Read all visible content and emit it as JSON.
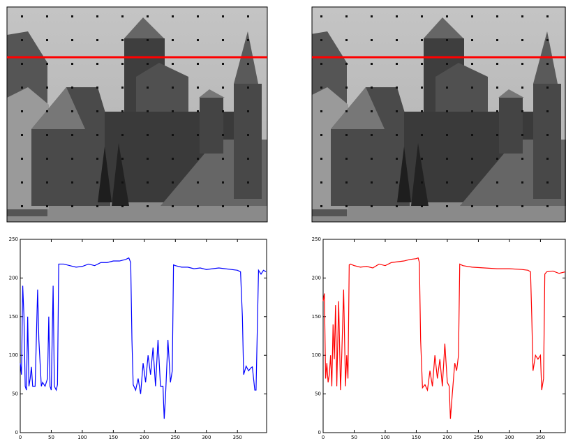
{
  "chart_data": [
    {
      "type": "line",
      "x": [
        0,
        2,
        4,
        6,
        8,
        10,
        12,
        14,
        16,
        18,
        20,
        24,
        28,
        30,
        34,
        36,
        40,
        44,
        46,
        48,
        50,
        53,
        55,
        58,
        60,
        62,
        70,
        80,
        90,
        100,
        110,
        120,
        130,
        140,
        150,
        160,
        170,
        175,
        178,
        180,
        182,
        186,
        190,
        194,
        198,
        202,
        206,
        210,
        214,
        218,
        222,
        226,
        230,
        232,
        234,
        238,
        242,
        245,
        247,
        250,
        260,
        270,
        280,
        290,
        300,
        310,
        320,
        330,
        340,
        350,
        355,
        358,
        360,
        364,
        368,
        372,
        374,
        378,
        380,
        384,
        388,
        392,
        396
      ],
      "series": [
        {
          "color": "#0000ff",
          "values": [
            90,
            75,
            190,
            150,
            60,
            55,
            150,
            60,
            70,
            85,
            60,
            60,
            185,
            120,
            60,
            65,
            60,
            70,
            150,
            60,
            55,
            190,
            60,
            55,
            62,
            218,
            218,
            216,
            214,
            215,
            218,
            216,
            220,
            220,
            222,
            222,
            224,
            226,
            220,
            120,
            62,
            55,
            70,
            50,
            90,
            65,
            100,
            75,
            110,
            60,
            120,
            60,
            60,
            18,
            45,
            120,
            65,
            80,
            217,
            216,
            214,
            214,
            212,
            213,
            211,
            212,
            213,
            212,
            211,
            210,
            208,
            150,
            75,
            86,
            80,
            84,
            85,
            55,
            55,
            210,
            205,
            210,
            208
          ]
        }
      ],
      "xlim": [
        0,
        397
      ],
      "ylim": [
        0,
        250
      ],
      "xticks": [
        0,
        50,
        100,
        150,
        200,
        250,
        300,
        350
      ],
      "yticks": [
        0,
        50,
        100,
        150,
        200,
        250
      ]
    },
    {
      "type": "line",
      "x": [
        0,
        2,
        4,
        6,
        8,
        10,
        12,
        14,
        16,
        18,
        20,
        22,
        25,
        28,
        30,
        33,
        36,
        38,
        40,
        42,
        44,
        50,
        60,
        70,
        80,
        90,
        100,
        110,
        120,
        130,
        140,
        150,
        153,
        155,
        157,
        160,
        164,
        168,
        172,
        176,
        180,
        184,
        188,
        192,
        196,
        200,
        203,
        205,
        208,
        212,
        215,
        218,
        220,
        225,
        240,
        260,
        280,
        300,
        320,
        330,
        334,
        336,
        338,
        342,
        346,
        350,
        352,
        355,
        357,
        360,
        370,
        380,
        390
      ],
      "series": [
        {
          "color": "#ff0000",
          "values": [
            170,
            180,
            70,
            90,
            65,
            75,
            100,
            60,
            140,
            95,
            165,
            60,
            170,
            55,
            100,
            185,
            60,
            100,
            70,
            217,
            218,
            216,
            214,
            215,
            213,
            218,
            216,
            220,
            221,
            222,
            224,
            225,
            226,
            220,
            120,
            58,
            62,
            55,
            80,
            60,
            100,
            70,
            95,
            60,
            115,
            65,
            60,
            18,
            50,
            90,
            80,
            100,
            218,
            216,
            214,
            213,
            212,
            212,
            211,
            210,
            208,
            150,
            80,
            100,
            95,
            100,
            55,
            70,
            205,
            208,
            209,
            206,
            208
          ]
        }
      ],
      "xlim": [
        0,
        390
      ],
      "ylim": [
        0,
        250
      ],
      "xticks": [
        0,
        50,
        100,
        150,
        200,
        250,
        300,
        350
      ],
      "yticks": [
        0,
        50,
        100,
        150,
        200,
        250
      ]
    }
  ]
}
